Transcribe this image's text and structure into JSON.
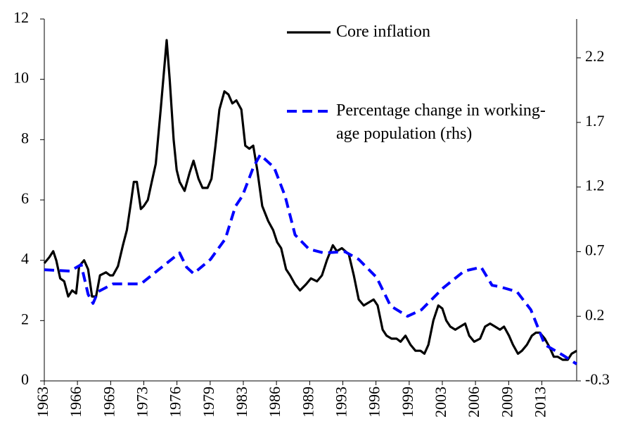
{
  "chart_data": {
    "type": "line",
    "xlim": [
      1963,
      2016.5
    ],
    "xticks": [
      1963,
      {
        "value": 1966.33,
        "label": "1966"
      },
      {
        "value": 1969.67,
        "label": "1969"
      },
      1973,
      {
        "value": 1976.33,
        "label": "1976"
      },
      {
        "value": 1979.67,
        "label": "1979"
      },
      1983,
      {
        "value": 1986.33,
        "label": "1986"
      },
      {
        "value": 1989.67,
        "label": "1989"
      },
      1993,
      {
        "value": 1996.33,
        "label": "1996"
      },
      {
        "value": 1999.67,
        "label": "1999"
      },
      2003,
      {
        "value": 2006.33,
        "label": "2006"
      },
      {
        "value": 2009.67,
        "label": "2009"
      },
      2013
    ],
    "ylim": [
      0,
      12
    ],
    "yticks": [
      0,
      2,
      4,
      6,
      8,
      10,
      12
    ],
    "y2lim": [
      -0.3,
      2.5
    ],
    "y2ticks": [
      -0.3,
      0.2,
      0.7,
      1.2,
      1.7,
      2.2
    ],
    "series": [
      {
        "name": "Core inflation",
        "color": "#000000",
        "style": "solid",
        "x": [
          1963.0,
          1963.5,
          1963.9,
          1964.2,
          1964.6,
          1965.0,
          1965.4,
          1965.8,
          1966.2,
          1966.5,
          1967.0,
          1967.4,
          1967.8,
          1968.2,
          1968.6,
          1969.2,
          1969.6,
          1969.9,
          1970.4,
          1970.9,
          1971.3,
          1971.7,
          1972.0,
          1972.3,
          1972.7,
          1973.0,
          1973.4,
          1973.8,
          1974.2,
          1974.7,
          1975.3,
          1975.6,
          1976.0,
          1976.3,
          1976.6,
          1977.1,
          1977.6,
          1978.0,
          1978.5,
          1978.9,
          1979.4,
          1979.8,
          1980.2,
          1980.6,
          1981.1,
          1981.5,
          1981.9,
          1982.3,
          1982.8,
          1983.2,
          1983.6,
          1984.0,
          1984.4,
          1984.9,
          1985.5,
          1986.0,
          1986.4,
          1986.8,
          1987.3,
          1987.7,
          1988.2,
          1988.7,
          1989.3,
          1989.8,
          1990.4,
          1990.9,
          1991.4,
          1992.0,
          1992.4,
          1992.9,
          1993.6,
          1994.1,
          1994.6,
          1995.1,
          1995.6,
          1996.1,
          1996.5,
          1997.0,
          1997.4,
          1997.9,
          1998.4,
          1998.8,
          1999.3,
          1999.8,
          2000.3,
          2000.8,
          2001.2,
          2001.6,
          2002.1,
          2002.6,
          2003.0,
          2003.4,
          2003.8,
          2004.3,
          2004.8,
          2005.3,
          2005.7,
          2006.2,
          2006.8,
          2007.3,
          2007.8,
          2008.3,
          2008.8,
          2009.2,
          2009.7,
          2010.1,
          2010.6,
          2011.0,
          2011.5,
          2012.0,
          2012.4,
          2012.8,
          2013.3,
          2013.8,
          2014.2,
          2014.6,
          2015.1,
          2015.6,
          2016.0,
          2016.5
        ],
        "values": [
          3.9,
          4.1,
          4.3,
          4.0,
          3.4,
          3.3,
          2.8,
          3.0,
          2.9,
          3.8,
          4.0,
          3.7,
          2.8,
          2.8,
          3.5,
          3.6,
          3.5,
          3.5,
          3.8,
          4.5,
          5.0,
          5.9,
          6.6,
          6.6,
          5.7,
          5.8,
          6.0,
          6.6,
          7.2,
          9.0,
          11.3,
          10.0,
          8.0,
          7.0,
          6.6,
          6.3,
          6.9,
          7.3,
          6.7,
          6.4,
          6.4,
          6.7,
          7.8,
          9.0,
          9.6,
          9.5,
          9.2,
          9.3,
          9.0,
          7.8,
          7.7,
          7.8,
          7.0,
          5.8,
          5.3,
          5.0,
          4.6,
          4.4,
          3.7,
          3.5,
          3.2,
          3.0,
          3.2,
          3.4,
          3.3,
          3.5,
          4.0,
          4.5,
          4.3,
          4.4,
          4.2,
          3.5,
          2.7,
          2.5,
          2.6,
          2.7,
          2.5,
          1.7,
          1.5,
          1.4,
          1.4,
          1.3,
          1.5,
          1.2,
          1.0,
          1.0,
          0.9,
          1.2,
          2.0,
          2.5,
          2.4,
          2.0,
          1.8,
          1.7,
          1.8,
          1.9,
          1.5,
          1.3,
          1.4,
          1.8,
          1.9,
          1.8,
          1.7,
          1.8,
          1.5,
          1.2,
          0.9,
          1.0,
          1.2,
          1.5,
          1.6,
          1.6,
          1.4,
          1.1,
          0.8,
          0.8,
          0.7,
          0.7,
          0.9,
          1.0
        ]
      },
      {
        "name": "Percentage change in working-age population (rhs)",
        "color": "#0000ff",
        "style": "dashed",
        "axis": "y2",
        "x": [
          1963.0,
          1965.6,
          1966.7,
          1967.4,
          1967.9,
          1968.4,
          1969.9,
          1972.7,
          1974.8,
          1976.6,
          1977.3,
          1978.0,
          1979.7,
          1981.2,
          1982.2,
          1982.9,
          1984.0,
          1984.7,
          1986.1,
          1987.2,
          1988.2,
          1989.6,
          1991.1,
          1993.2,
          1994.6,
          1996.4,
          1997.8,
          1999.5,
          2000.9,
          2003.1,
          2005.2,
          2006.9,
          2008.0,
          2008.7,
          2010.5,
          2011.9,
          2013.3,
          2015.1,
          2016.5
        ],
        "values": [
          0.56,
          0.55,
          0.6,
          0.37,
          0.3,
          0.39,
          0.45,
          0.45,
          0.58,
          0.69,
          0.58,
          0.53,
          0.64,
          0.8,
          1.05,
          1.13,
          1.35,
          1.45,
          1.35,
          1.13,
          0.83,
          0.72,
          0.69,
          0.7,
          0.64,
          0.5,
          0.28,
          0.2,
          0.25,
          0.42,
          0.55,
          0.58,
          0.44,
          0.43,
          0.39,
          0.25,
          -0.02,
          -0.1,
          -0.17
        ]
      }
    ]
  }
}
